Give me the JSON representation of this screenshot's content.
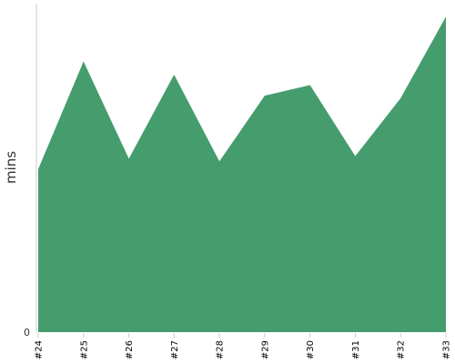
{
  "chart_data": {
    "type": "area",
    "categories": [
      "#24",
      "#25",
      "#26",
      "#27",
      "#28",
      "#29",
      "#30",
      "#31",
      "#32",
      "#33"
    ],
    "values": [
      62,
      103,
      66,
      98,
      65,
      90,
      94,
      67,
      89,
      120
    ],
    "title": "",
    "xlabel": "",
    "ylabel": "mins",
    "ylim": [
      0,
      125
    ],
    "y_tick_labels": [
      "0"
    ],
    "color": "#459c6d",
    "grid": false,
    "legend": "none"
  }
}
